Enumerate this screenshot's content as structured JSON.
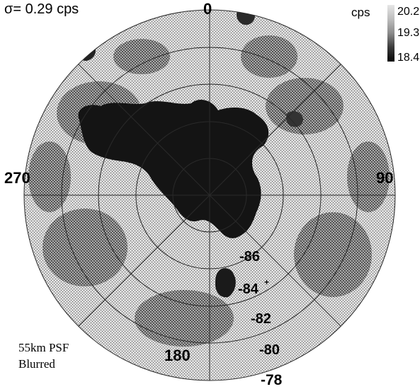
{
  "sigma_label": "σ= 0.29 cps",
  "colorbar": {
    "unit": "cps",
    "max": "20.2",
    "mid": "19.3",
    "min": "18.4",
    "colors": [
      "#e6e6e6",
      "#bdbdbd",
      "#8a8a8a",
      "#3a3a3a",
      "#050505"
    ]
  },
  "azimuth_labels": {
    "north": "0",
    "east": "90",
    "south": "180",
    "west": "270"
  },
  "latitude_labels": {
    "ring_86": "-86",
    "ring_84": "-84",
    "ring_84_sup": "+",
    "ring_82": "-82",
    "ring_80": "-80",
    "ring_78": "-78"
  },
  "psf_note": {
    "line1": "55km PSF",
    "line2": "Blurred"
  },
  "colors": {
    "background": "#ffffff",
    "map_mid_gray": "#a8a8a8",
    "map_light_gray": "#cccccc",
    "map_dark": "#141414",
    "grid_line": "#2a2a2a"
  }
}
